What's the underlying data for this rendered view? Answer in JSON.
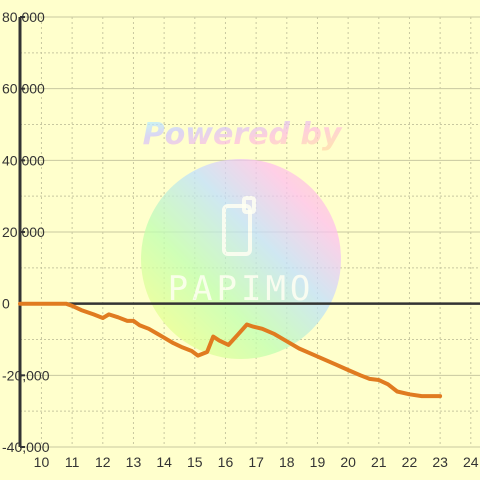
{
  "watermark": {
    "line1": "Powered by",
    "brand": "PAPIMO"
  },
  "colors": {
    "background": "#ffffcc",
    "line": "#e07b20",
    "grid": "#c8c8a0",
    "axis": "#333333"
  },
  "chart_data": {
    "type": "line",
    "title": "",
    "xlabel": "",
    "ylabel": "",
    "xlim": [
      9.3,
      24.3
    ],
    "ylim": [
      -40000,
      80000
    ],
    "x_ticks": [
      10,
      11,
      12,
      13,
      14,
      15,
      16,
      17,
      18,
      19,
      20,
      21,
      22,
      23,
      24
    ],
    "y_ticks": [
      -40000,
      -20000,
      0,
      20000,
      40000,
      60000,
      80000
    ],
    "y_tick_labels": [
      "-40,000",
      "-20,000",
      "0",
      "20,000",
      "40,000",
      "60,000",
      "80,000"
    ],
    "grid": true,
    "legend": "none",
    "series": [
      {
        "x": [
          9.3,
          10.0,
          10.5,
          10.8,
          11.0,
          11.3,
          11.7,
          12.0,
          12.2,
          12.5,
          12.8,
          13.0,
          13.2,
          13.5,
          13.8,
          14.0,
          14.3,
          14.6,
          14.9,
          15.1,
          15.4,
          15.6,
          15.8,
          16.1,
          16.4,
          16.7,
          16.9,
          17.2,
          17.6,
          18.0,
          18.4,
          18.8,
          19.2,
          19.6,
          20.0,
          20.4,
          20.7,
          21.0,
          21.3,
          21.6,
          22.0,
          22.4,
          23.0
        ],
        "y": [
          0,
          0,
          0,
          0,
          -600,
          -1800,
          -3000,
          -4000,
          -3000,
          -3800,
          -4800,
          -4800,
          -6000,
          -7000,
          -8500,
          -9500,
          -11000,
          -12200,
          -13200,
          -14500,
          -13500,
          -9200,
          -10300,
          -11500,
          -8700,
          -5800,
          -6400,
          -7000,
          -8500,
          -10500,
          -12500,
          -14000,
          -15500,
          -17000,
          -18500,
          -20000,
          -21000,
          -21300,
          -22500,
          -24500,
          -25300,
          -25800,
          -25800
        ]
      }
    ]
  }
}
